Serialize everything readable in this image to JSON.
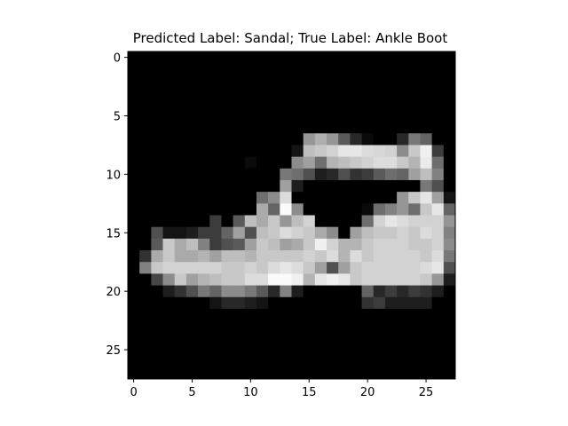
{
  "chart_data": {
    "type": "heatmap",
    "title": "Predicted Label: Sandal; True Label: Ankle Boot",
    "xlabel": "",
    "ylabel": "",
    "colormap": "gray",
    "value_range": [
      0,
      255
    ],
    "grid": false,
    "xlim": [
      -0.5,
      27.5
    ],
    "ylim": [
      27.5,
      -0.5
    ],
    "x_ticks": [
      0,
      5,
      10,
      15,
      20,
      25
    ],
    "y_ticks": [
      0,
      5,
      10,
      15,
      20,
      25
    ],
    "rows": 28,
    "cols": 28,
    "pixels": [
      [
        0,
        0,
        0,
        0,
        0,
        0,
        0,
        0,
        0,
        0,
        0,
        0,
        0,
        0,
        0,
        0,
        0,
        0,
        0,
        0,
        0,
        0,
        0,
        0,
        0,
        0,
        0,
        0
      ],
      [
        0,
        0,
        0,
        0,
        0,
        0,
        0,
        0,
        0,
        0,
        0,
        0,
        0,
        0,
        0,
        0,
        0,
        0,
        0,
        0,
        0,
        0,
        0,
        0,
        0,
        0,
        0,
        0
      ],
      [
        0,
        0,
        0,
        0,
        0,
        0,
        0,
        0,
        0,
        0,
        0,
        0,
        0,
        0,
        0,
        0,
        0,
        0,
        0,
        0,
        0,
        0,
        0,
        0,
        0,
        0,
        0,
        0
      ],
      [
        0,
        0,
        0,
        0,
        0,
        0,
        0,
        0,
        0,
        0,
        0,
        0,
        0,
        0,
        0,
        0,
        0,
        0,
        0,
        0,
        0,
        0,
        0,
        0,
        0,
        0,
        0,
        0
      ],
      [
        0,
        0,
        0,
        0,
        0,
        0,
        0,
        0,
        0,
        0,
        0,
        0,
        0,
        0,
        0,
        0,
        0,
        0,
        0,
        0,
        0,
        0,
        0,
        0,
        0,
        0,
        0,
        0
      ],
      [
        0,
        0,
        0,
        0,
        0,
        0,
        0,
        0,
        0,
        0,
        0,
        0,
        0,
        0,
        0,
        0,
        0,
        0,
        0,
        0,
        0,
        0,
        0,
        0,
        0,
        0,
        0,
        0
      ],
      [
        0,
        0,
        0,
        0,
        0,
        0,
        0,
        0,
        0,
        0,
        0,
        0,
        0,
        0,
        0,
        0,
        0,
        0,
        0,
        0,
        0,
        0,
        0,
        0,
        0,
        0,
        0,
        0
      ],
      [
        0,
        0,
        0,
        0,
        0,
        0,
        0,
        0,
        0,
        0,
        0,
        0,
        0,
        0,
        0,
        150,
        175,
        150,
        90,
        40,
        10,
        0,
        0,
        40,
        120,
        100,
        0,
        0
      ],
      [
        0,
        0,
        0,
        0,
        0,
        0,
        0,
        0,
        0,
        0,
        0,
        0,
        0,
        0,
        20,
        190,
        200,
        210,
        230,
        230,
        220,
        215,
        210,
        140,
        200,
        240,
        60,
        0
      ],
      [
        0,
        0,
        0,
        0,
        0,
        0,
        0,
        0,
        0,
        0,
        10,
        0,
        0,
        0,
        140,
        160,
        110,
        180,
        190,
        200,
        210,
        220,
        220,
        200,
        180,
        235,
        110,
        0
      ],
      [
        0,
        0,
        0,
        0,
        0,
        0,
        0,
        0,
        0,
        0,
        0,
        0,
        0,
        120,
        110,
        80,
        30,
        40,
        80,
        50,
        60,
        90,
        110,
        100,
        160,
        190,
        130,
        0
      ],
      [
        0,
        0,
        0,
        0,
        0,
        0,
        0,
        0,
        0,
        0,
        0,
        0,
        0,
        160,
        30,
        0,
        0,
        0,
        0,
        0,
        0,
        0,
        0,
        0,
        0,
        120,
        80,
        0
      ],
      [
        0,
        0,
        0,
        0,
        0,
        0,
        0,
        0,
        0,
        0,
        0,
        110,
        140,
        220,
        0,
        0,
        0,
        0,
        0,
        0,
        0,
        0,
        0,
        150,
        200,
        230,
        160,
        20
      ],
      [
        0,
        0,
        0,
        0,
        0,
        0,
        0,
        0,
        0,
        0,
        0,
        170,
        100,
        250,
        140,
        0,
        0,
        0,
        0,
        0,
        10,
        110,
        130,
        150,
        110,
        200,
        230,
        100
      ],
      [
        0,
        0,
        0,
        0,
        0,
        0,
        0,
        60,
        0,
        90,
        190,
        170,
        200,
        150,
        190,
        210,
        0,
        0,
        0,
        0,
        110,
        210,
        230,
        220,
        210,
        210,
        210,
        150
      ],
      [
        0,
        0,
        80,
        20,
        20,
        30,
        60,
        60,
        100,
        160,
        80,
        190,
        200,
        220,
        210,
        200,
        170,
        140,
        0,
        160,
        190,
        200,
        200,
        210,
        200,
        220,
        210,
        130
      ],
      [
        0,
        0,
        90,
        200,
        170,
        190,
        130,
        60,
        80,
        90,
        160,
        200,
        190,
        160,
        170,
        200,
        240,
        210,
        180,
        180,
        200,
        210,
        210,
        210,
        200,
        200,
        210,
        140
      ],
      [
        0,
        50,
        170,
        200,
        170,
        170,
        180,
        160,
        190,
        190,
        180,
        200,
        200,
        200,
        200,
        210,
        200,
        220,
        180,
        220,
        200,
        210,
        210,
        210,
        210,
        200,
        220,
        120
      ],
      [
        0,
        130,
        200,
        210,
        210,
        210,
        210,
        210,
        200,
        200,
        210,
        200,
        220,
        230,
        220,
        200,
        160,
        80,
        160,
        200,
        210,
        210,
        210,
        210,
        210,
        220,
        230,
        80
      ],
      [
        0,
        0,
        70,
        140,
        200,
        160,
        180,
        190,
        200,
        200,
        220,
        220,
        250,
        250,
        240,
        180,
        230,
        240,
        230,
        200,
        210,
        210,
        210,
        210,
        210,
        200,
        150,
        30
      ],
      [
        0,
        0,
        0,
        30,
        50,
        80,
        120,
        100,
        140,
        140,
        120,
        90,
        40,
        130,
        30,
        0,
        0,
        0,
        0,
        0,
        100,
        40,
        60,
        40,
        60,
        50,
        30,
        0
      ],
      [
        0,
        0,
        0,
        0,
        0,
        0,
        0,
        20,
        40,
        40,
        30,
        20,
        0,
        0,
        0,
        0,
        0,
        0,
        0,
        0,
        50,
        60,
        30,
        30,
        30,
        30,
        0,
        0
      ],
      [
        0,
        0,
        0,
        0,
        0,
        0,
        0,
        0,
        0,
        0,
        0,
        0,
        0,
        0,
        0,
        0,
        0,
        0,
        0,
        0,
        0,
        0,
        0,
        0,
        0,
        0,
        0,
        0
      ],
      [
        0,
        0,
        0,
        0,
        0,
        0,
        0,
        0,
        0,
        0,
        0,
        0,
        0,
        0,
        0,
        0,
        0,
        0,
        0,
        0,
        0,
        0,
        0,
        0,
        0,
        0,
        0,
        0
      ],
      [
        0,
        0,
        0,
        0,
        0,
        0,
        0,
        0,
        0,
        0,
        0,
        0,
        0,
        0,
        0,
        0,
        0,
        0,
        0,
        0,
        0,
        0,
        0,
        0,
        0,
        0,
        0,
        0
      ],
      [
        0,
        0,
        0,
        0,
        0,
        0,
        0,
        0,
        0,
        0,
        0,
        0,
        0,
        0,
        0,
        0,
        0,
        0,
        0,
        0,
        0,
        0,
        0,
        0,
        0,
        0,
        0,
        0
      ],
      [
        0,
        0,
        0,
        0,
        0,
        0,
        0,
        0,
        0,
        0,
        0,
        0,
        0,
        0,
        0,
        0,
        0,
        0,
        0,
        0,
        0,
        0,
        0,
        0,
        0,
        0,
        0,
        0
      ],
      [
        0,
        0,
        0,
        0,
        0,
        0,
        0,
        0,
        0,
        0,
        0,
        0,
        0,
        0,
        0,
        0,
        0,
        0,
        0,
        0,
        0,
        0,
        0,
        0,
        0,
        0,
        0,
        0
      ]
    ]
  }
}
